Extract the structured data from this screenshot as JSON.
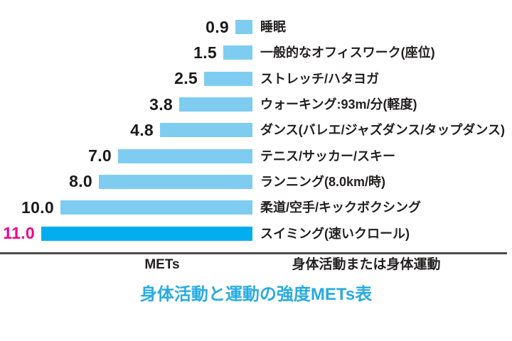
{
  "chart_data": {
    "type": "bar",
    "orientation": "horizontal",
    "title": "身体活動と運動の強度METs表",
    "xlim": [
      0,
      11
    ],
    "grid": false,
    "legend": "none",
    "axis": {
      "left_header": "METs",
      "right_header": "身体活動または身体運動"
    },
    "rows": [
      {
        "value": 0.9,
        "value_label": "0.9",
        "activity": "睡眠",
        "highlight": false
      },
      {
        "value": 1.5,
        "value_label": "1.5",
        "activity": "一般的なオフィスワーク(座位)",
        "highlight": false
      },
      {
        "value": 2.5,
        "value_label": "2.5",
        "activity": "ストレッチ/ハタヨガ",
        "highlight": false
      },
      {
        "value": 3.8,
        "value_label": "3.8",
        "activity": "ウォーキング:93m/分(軽度)",
        "highlight": false
      },
      {
        "value": 4.8,
        "value_label": "4.8",
        "activity": "ダンス(バレエ/ジャズダンス/タップダンス)",
        "highlight": false
      },
      {
        "value": 7.0,
        "value_label": "7.0",
        "activity": "テニス/サッカー/スキー",
        "highlight": false
      },
      {
        "value": 8.0,
        "value_label": "8.0",
        "activity": "ランニング(8.0km/時)",
        "highlight": false
      },
      {
        "value": 10.0,
        "value_label": "10.0",
        "activity": "柔道/空手/キックボクシング",
        "highlight": false
      },
      {
        "value": 11.0,
        "value_label": "11.0",
        "activity": "スイミング(速いクロール)",
        "highlight": true
      }
    ],
    "colors": {
      "bar": "#7ECDF0",
      "bar_highlight": "#00AEEF",
      "value_text": "#1A1A1A",
      "value_text_highlight": "#EC008C",
      "title_text": "#29ABE2",
      "divider": "#4D4D4D"
    }
  }
}
